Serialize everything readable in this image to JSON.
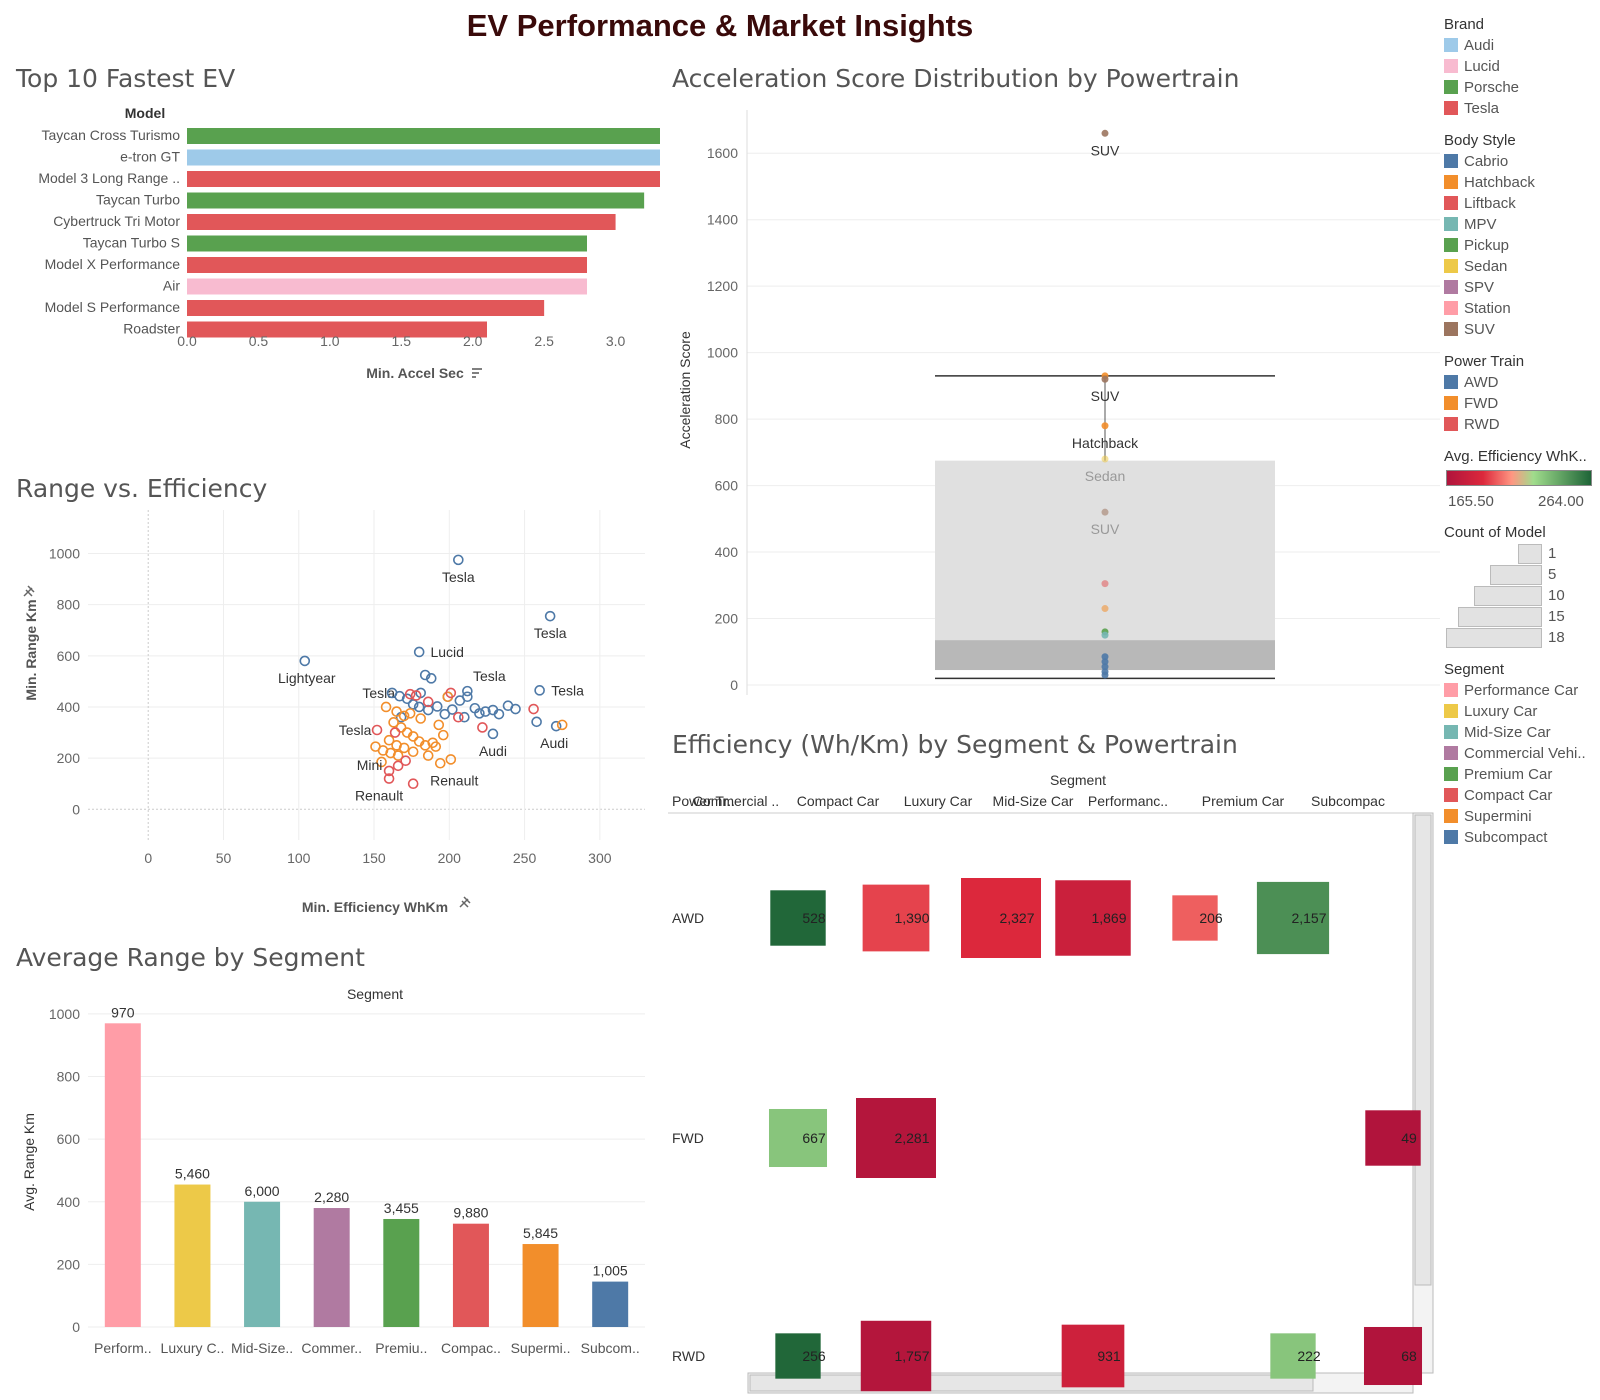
{
  "title": "EV Performance & Market Insights",
  "colors": {
    "audi": "#9ecae9",
    "lucid": "#f8bbd0",
    "porsche": "#59a14f",
    "tesla": "#e15759",
    "powertrain": {
      "AWD": "#4e79a7",
      "FWD": "#f28e2b",
      "RWD": "#e15759"
    }
  },
  "top10": {
    "title": "Top 10 Fastest EV",
    "column_header": "Model",
    "axis_label": "Min. Accel Sec",
    "sort_icon": "sort-desc-icon"
  },
  "boxplot": {
    "title": "Acceleration Score Distribution by Powertrain",
    "axis_label": "Acceleration Score"
  },
  "scatter": {
    "title": "Range vs. Efficiency",
    "x_label": "Min. Efficiency WhKm",
    "y_label": "Min. Range Km",
    "pin_icon": "pin-icon"
  },
  "avg_range": {
    "title": "Average Range by Segment",
    "header": "Segment",
    "y_label": "Avg. Range Km"
  },
  "efficiency": {
    "title": "Efficiency (Wh/Km) by Segment & Powertrain",
    "header": "Segment",
    "row_header": "Power Tr..",
    "columns": [
      "Commercial ..",
      "Compact Car",
      "Luxury Car",
      "Mid-Size Car",
      "Performanc..",
      "Premium Car",
      "Subcompac"
    ],
    "rows": [
      "AWD",
      "FWD",
      "RWD"
    ]
  },
  "legends": {
    "brand": {
      "title": "Brand",
      "items": [
        {
          "label": "Audi",
          "color": "#9ecae9"
        },
        {
          "label": "Lucid",
          "color": "#f8bbd0"
        },
        {
          "label": "Porsche",
          "color": "#59a14f"
        },
        {
          "label": "Tesla",
          "color": "#e15759"
        }
      ]
    },
    "body_style": {
      "title": "Body Style",
      "items": [
        {
          "label": "Cabrio",
          "color": "#4e79a7"
        },
        {
          "label": "Hatchback",
          "color": "#f28e2b"
        },
        {
          "label": "Liftback",
          "color": "#e15759"
        },
        {
          "label": "MPV",
          "color": "#76b7b2"
        },
        {
          "label": "Pickup",
          "color": "#59a14f"
        },
        {
          "label": "Sedan",
          "color": "#edc948"
        },
        {
          "label": "SPV",
          "color": "#b07aa1"
        },
        {
          "label": "Station",
          "color": "#ff9da7"
        },
        {
          "label": "SUV",
          "color": "#9c755f"
        }
      ]
    },
    "power_train": {
      "title": "Power Train",
      "items": [
        {
          "label": "AWD",
          "color": "#4e79a7"
        },
        {
          "label": "FWD",
          "color": "#f28e2b"
        },
        {
          "label": "RWD",
          "color": "#e15759"
        }
      ]
    },
    "avg_efficiency": {
      "title": "Avg. Efficiency WhK..",
      "min": "165.50",
      "max": "264.00"
    },
    "count_of_model": {
      "title": "Count of Model",
      "items": [
        "1",
        "5",
        "10",
        "15",
        "18"
      ]
    },
    "segment": {
      "title": "Segment",
      "items": [
        {
          "label": "Performance Car",
          "color": "#ff9da7"
        },
        {
          "label": "Luxury Car",
          "color": "#edc948"
        },
        {
          "label": "Mid-Size Car",
          "color": "#76b7b2"
        },
        {
          "label": "Commercial Vehi..",
          "color": "#b07aa1"
        },
        {
          "label": "Premium Car",
          "color": "#59a14f"
        },
        {
          "label": "Compact Car",
          "color": "#e15759"
        },
        {
          "label": "Supermini",
          "color": "#f28e2b"
        },
        {
          "label": "Subcompact",
          "color": "#4e79a7"
        }
      ]
    }
  },
  "chart_data": [
    {
      "type": "bar",
      "title": "Top 10 Fastest EV",
      "orientation": "horizontal",
      "xlabel": "Min. Accel Sec",
      "xlim": [
        0,
        3.5
      ],
      "xticks": [
        "0.0",
        "0.5",
        "1.0",
        "1.5",
        "2.0",
        "2.5",
        "3.0",
        "3.5"
      ],
      "categories": [
        "Taycan Cross Turismo",
        "e-tron GT",
        "Model 3 Long Range ..",
        "Taycan Turbo",
        "Cybertruck Tri Motor",
        "Taycan Turbo S",
        "Model X Performance",
        "Air",
        "Model S Performance",
        "Roadster"
      ],
      "values": [
        3.5,
        3.5,
        3.4,
        3.2,
        3.0,
        2.8,
        2.8,
        2.8,
        2.5,
        2.1
      ],
      "brand": [
        "Porsche",
        "Audi",
        "Tesla",
        "Porsche",
        "Tesla",
        "Porsche",
        "Tesla",
        "Lucid",
        "Tesla",
        "Tesla"
      ]
    },
    {
      "type": "scatter",
      "title": "Acceleration Score Distribution by Powertrain",
      "ylabel": "Acceleration Score",
      "ylim": [
        0,
        1700
      ],
      "yticks": [
        0,
        200,
        400,
        600,
        800,
        1000,
        1200,
        1400,
        1600
      ],
      "box": {
        "whisker_low": 20,
        "q1": 45,
        "median": 135,
        "q3": 675,
        "whisker_high": 930
      },
      "points": [
        {
          "y": 1660,
          "label": "SUV",
          "color": "#9c755f"
        },
        {
          "y": 930,
          "color": "#f28e2b"
        },
        {
          "y": 920,
          "label": "SUV",
          "color": "#9c755f"
        },
        {
          "y": 780,
          "label": "Hatchback",
          "color": "#f28e2b"
        },
        {
          "y": 680,
          "label": "Sedan",
          "color": "#edc948"
        },
        {
          "y": 520,
          "label": "SUV",
          "color": "#9c755f"
        },
        {
          "y": 305,
          "color": "#e15759"
        },
        {
          "y": 230,
          "color": "#f28e2b"
        },
        {
          "y": 160,
          "color": "#59a14f"
        },
        {
          "y": 150,
          "color": "#76b7b2"
        },
        {
          "y": 85,
          "color": "#4e79a7"
        },
        {
          "y": 70,
          "color": "#4e79a7"
        },
        {
          "y": 55,
          "color": "#4e79a7"
        },
        {
          "y": 40,
          "color": "#4e79a7"
        },
        {
          "y": 30,
          "color": "#4e79a7"
        }
      ]
    },
    {
      "type": "scatter",
      "title": "Range vs. Efficiency",
      "xlabel": "Min. Efficiency WhKm",
      "ylabel": "Min. Range Km",
      "xlim": [
        -40,
        330
      ],
      "ylim": [
        -120,
        1170
      ],
      "xticks": [
        0,
        50,
        100,
        150,
        200,
        250,
        300
      ],
      "yticks": [
        0,
        200,
        400,
        600,
        800,
        1000
      ],
      "points": [
        {
          "x": 206,
          "y": 975,
          "pt": "AWD",
          "label": "Tesla"
        },
        {
          "x": 267,
          "y": 755,
          "pt": "AWD",
          "label": "Tesla"
        },
        {
          "x": 104,
          "y": 580,
          "pt": "AWD",
          "label": "Lightyear"
        },
        {
          "x": 180,
          "y": 615,
          "pt": "AWD",
          "label": "Lucid"
        },
        {
          "x": 260,
          "y": 465,
          "pt": "AWD",
          "label": "Tesla"
        },
        {
          "x": 271,
          "y": 325,
          "pt": "AWD",
          "label": "Audi"
        },
        {
          "x": 229,
          "y": 295,
          "pt": "AWD",
          "label": "Audi"
        },
        {
          "x": 160,
          "y": 120,
          "pt": "RWD",
          "label": "Renault"
        },
        {
          "x": 194,
          "y": 180,
          "pt": "FWD",
          "label": "Renault"
        },
        {
          "x": 155,
          "y": 185,
          "pt": "FWD",
          "label": "Mini"
        },
        {
          "x": 152,
          "y": 310,
          "pt": "RWD",
          "label": "Tesla"
        },
        {
          "x": 212,
          "y": 462,
          "pt": "AWD",
          "label": "Tesla"
        },
        {
          "x": 181,
          "y": 455,
          "pt": "AWD",
          "label": "Tesla"
        },
        {
          "x": 184,
          "y": 525,
          "pt": "AWD"
        },
        {
          "x": 188,
          "y": 512,
          "pt": "AWD"
        },
        {
          "x": 162,
          "y": 455,
          "pt": "AWD"
        },
        {
          "x": 167,
          "y": 442,
          "pt": "AWD"
        },
        {
          "x": 172,
          "y": 432,
          "pt": "AWD"
        },
        {
          "x": 176,
          "y": 410,
          "pt": "AWD"
        },
        {
          "x": 180,
          "y": 400,
          "pt": "AWD"
        },
        {
          "x": 186,
          "y": 388,
          "pt": "AWD"
        },
        {
          "x": 192,
          "y": 402,
          "pt": "AWD"
        },
        {
          "x": 197,
          "y": 372,
          "pt": "AWD"
        },
        {
          "x": 202,
          "y": 390,
          "pt": "AWD"
        },
        {
          "x": 207,
          "y": 425,
          "pt": "AWD"
        },
        {
          "x": 212,
          "y": 440,
          "pt": "AWD"
        },
        {
          "x": 217,
          "y": 395,
          "pt": "AWD"
        },
        {
          "x": 220,
          "y": 375,
          "pt": "AWD"
        },
        {
          "x": 224,
          "y": 382,
          "pt": "AWD"
        },
        {
          "x": 229,
          "y": 388,
          "pt": "AWD"
        },
        {
          "x": 233,
          "y": 372,
          "pt": "AWD"
        },
        {
          "x": 239,
          "y": 405,
          "pt": "AWD"
        },
        {
          "x": 244,
          "y": 392,
          "pt": "AWD"
        },
        {
          "x": 258,
          "y": 342,
          "pt": "AWD"
        },
        {
          "x": 210,
          "y": 360,
          "pt": "AWD"
        },
        {
          "x": 168,
          "y": 360,
          "pt": "AWD"
        },
        {
          "x": 199,
          "y": 440,
          "pt": "AWD"
        },
        {
          "x": 158,
          "y": 400,
          "pt": "FWD"
        },
        {
          "x": 165,
          "y": 382,
          "pt": "FWD"
        },
        {
          "x": 170,
          "y": 365,
          "pt": "FWD"
        },
        {
          "x": 163,
          "y": 340,
          "pt": "FWD"
        },
        {
          "x": 168,
          "y": 320,
          "pt": "FWD"
        },
        {
          "x": 172,
          "y": 300,
          "pt": "FWD"
        },
        {
          "x": 176,
          "y": 285,
          "pt": "FWD"
        },
        {
          "x": 180,
          "y": 265,
          "pt": "FWD"
        },
        {
          "x": 184,
          "y": 250,
          "pt": "FWD"
        },
        {
          "x": 160,
          "y": 270,
          "pt": "FWD"
        },
        {
          "x": 165,
          "y": 250,
          "pt": "FWD"
        },
        {
          "x": 170,
          "y": 240,
          "pt": "FWD"
        },
        {
          "x": 156,
          "y": 230,
          "pt": "FWD"
        },
        {
          "x": 151,
          "y": 245,
          "pt": "FWD"
        },
        {
          "x": 161,
          "y": 220,
          "pt": "FWD"
        },
        {
          "x": 166,
          "y": 210,
          "pt": "FWD"
        },
        {
          "x": 176,
          "y": 225,
          "pt": "FWD"
        },
        {
          "x": 186,
          "y": 210,
          "pt": "FWD"
        },
        {
          "x": 189,
          "y": 260,
          "pt": "FWD"
        },
        {
          "x": 193,
          "y": 330,
          "pt": "FWD"
        },
        {
          "x": 196,
          "y": 290,
          "pt": "FWD"
        },
        {
          "x": 199,
          "y": 440,
          "pt": "FWD"
        },
        {
          "x": 201,
          "y": 195,
          "pt": "FWD"
        },
        {
          "x": 191,
          "y": 245,
          "pt": "FWD"
        },
        {
          "x": 181,
          "y": 355,
          "pt": "FWD"
        },
        {
          "x": 174,
          "y": 375,
          "pt": "FWD"
        },
        {
          "x": 275,
          "y": 330,
          "pt": "FWD"
        },
        {
          "x": 174,
          "y": 450,
          "pt": "RWD"
        },
        {
          "x": 178,
          "y": 445,
          "pt": "RWD"
        },
        {
          "x": 186,
          "y": 420,
          "pt": "RWD"
        },
        {
          "x": 201,
          "y": 455,
          "pt": "RWD"
        },
        {
          "x": 206,
          "y": 360,
          "pt": "RWD"
        },
        {
          "x": 222,
          "y": 320,
          "pt": "RWD"
        },
        {
          "x": 256,
          "y": 392,
          "pt": "RWD"
        },
        {
          "x": 164,
          "y": 300,
          "pt": "RWD"
        },
        {
          "x": 171,
          "y": 190,
          "pt": "RWD"
        },
        {
          "x": 166,
          "y": 170,
          "pt": "RWD"
        },
        {
          "x": 176,
          "y": 100,
          "pt": "RWD"
        },
        {
          "x": 160,
          "y": 150,
          "pt": "RWD"
        }
      ]
    },
    {
      "type": "bar",
      "title": "Average Range by Segment",
      "ylabel": "Avg. Range Km",
      "ylim": [
        0,
        1070
      ],
      "yticks": [
        0,
        200,
        400,
        600,
        800,
        1000
      ],
      "categories": [
        "Perform..",
        "Luxury C..",
        "Mid-Size..",
        "Commer..",
        "Premiu..",
        "Compac..",
        "Supermi..",
        "Subcom.."
      ],
      "values": [
        970,
        455,
        400,
        380,
        345,
        330,
        265,
        145
      ],
      "labels": [
        "970",
        "5,460",
        "6,000",
        "2,280",
        "3,455",
        "9,880",
        "5,845",
        "1,005"
      ],
      "colors": [
        "#ff9da7",
        "#edc948",
        "#76b7b2",
        "#b07aa1",
        "#59a14f",
        "#e15759",
        "#f28e2b",
        "#4e79a7"
      ]
    },
    {
      "type": "heatmap",
      "title": "Efficiency (Wh/Km) by Segment & Powertrain",
      "columns": [
        "Commercial ..",
        "Compact Car",
        "Luxury Car",
        "Mid-Size Car",
        "Performanc..",
        "Premium Car",
        "Subcompac"
      ],
      "rows": [
        "AWD",
        "FWD",
        "RWD"
      ],
      "cells": [
        {
          "row": "AWD",
          "col": 0,
          "label": "528",
          "count": 5,
          "avg_eff": 263
        },
        {
          "row": "AWD",
          "col": 1,
          "label": "1,390",
          "count": 10,
          "avg_eff": 195
        },
        {
          "row": "AWD",
          "col": 2,
          "label": "2,327",
          "count": 18,
          "avg_eff": 190
        },
        {
          "row": "AWD",
          "col": 3,
          "label": "1,869",
          "count": 15,
          "avg_eff": 180
        },
        {
          "row": "AWD",
          "col": 4,
          "label": "206",
          "count": 2,
          "avg_eff": 200
        },
        {
          "row": "AWD",
          "col": 5,
          "label": "2,157",
          "count": 13,
          "avg_eff": 250
        },
        {
          "row": "FWD",
          "col": 0,
          "label": "667",
          "count": 6,
          "avg_eff": 232
        },
        {
          "row": "FWD",
          "col": 1,
          "label": "2,281",
          "count": 18,
          "avg_eff": 168
        },
        {
          "row": "FWD",
          "col": 6,
          "label": "49",
          "count": 5,
          "avg_eff": 166
        },
        {
          "row": "RWD",
          "col": 0,
          "label": "256",
          "count": 2,
          "avg_eff": 263
        },
        {
          "row": "RWD",
          "col": 1,
          "label": "1,757",
          "count": 12,
          "avg_eff": 168
        },
        {
          "row": "RWD",
          "col": 3,
          "label": "931",
          "count": 8,
          "avg_eff": 182
        },
        {
          "row": "RWD",
          "col": 5,
          "label": "222",
          "count": 2,
          "avg_eff": 232
        },
        {
          "row": "RWD",
          "col": 6,
          "label": "68",
          "count": 6,
          "avg_eff": 166
        }
      ]
    }
  ]
}
